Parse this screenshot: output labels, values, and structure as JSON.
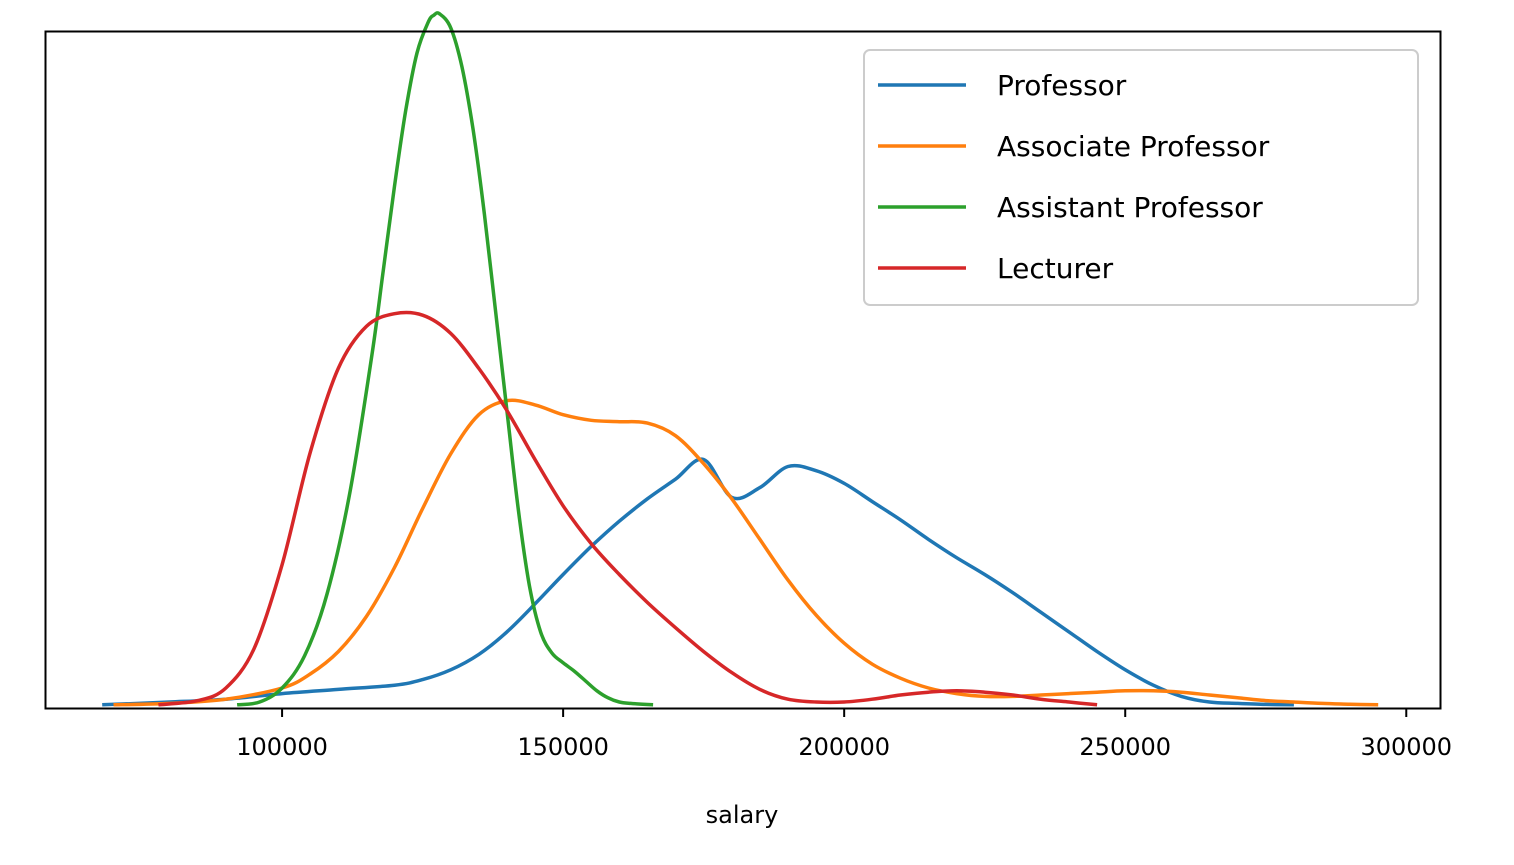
{
  "chart_data": {
    "type": "line",
    "title": "",
    "xlabel": "salary",
    "ylabel": "",
    "xlim": [
      58000,
      306000
    ],
    "ylim": [
      -2.26e-07,
      4.8e-05
    ],
    "xticks": [
      100000,
      150000,
      200000,
      250000,
      300000
    ],
    "xtick_labels": [
      "100000",
      "150000",
      "200000",
      "250000",
      "300000"
    ],
    "yticks_visible": false,
    "grid": false,
    "legend_position": "top-right",
    "series": [
      {
        "name": "Professor",
        "color": "#1f77b4",
        "x": [
          68000,
          80000,
          90000,
          100000,
          110000,
          120000,
          125000,
          130000,
          135000,
          140000,
          145000,
          150000,
          155000,
          160000,
          165000,
          170000,
          175000,
          180000,
          185000,
          190000,
          195000,
          200000,
          205000,
          210000,
          215000,
          220000,
          225000,
          230000,
          235000,
          240000,
          245000,
          250000,
          255000,
          260000,
          265000,
          270000,
          275000,
          280000
        ],
        "y": [
          0,
          2e-07,
          4e-07,
          8e-07,
          1.1e-06,
          1.4e-06,
          1.8e-06,
          2.5e-06,
          3.6e-06,
          5.2e-06,
          7.2e-06,
          9.3e-06,
          1.13e-05,
          1.31e-05,
          1.47e-05,
          1.61e-05,
          1.75e-05,
          1.48e-05,
          1.55e-05,
          1.7e-05,
          1.67e-05,
          1.58e-05,
          1.45e-05,
          1.32e-05,
          1.18e-05,
          1.05e-05,
          9.3e-06,
          8e-06,
          6.6e-06,
          5.2e-06,
          3.8e-06,
          2.5e-06,
          1.4e-06,
          6e-07,
          2e-07,
          1e-07,
          3e-08,
          0
        ]
      },
      {
        "name": "Associate Professor",
        "color": "#ff7f0e",
        "x": [
          70000,
          80000,
          90000,
          100000,
          105000,
          110000,
          115000,
          120000,
          125000,
          130000,
          135000,
          140000,
          145000,
          150000,
          155000,
          160000,
          165000,
          170000,
          175000,
          180000,
          185000,
          190000,
          195000,
          200000,
          205000,
          210000,
          215000,
          220000,
          225000,
          230000,
          235000,
          240000,
          245000,
          250000,
          255000,
          260000,
          265000,
          270000,
          275000,
          280000,
          285000,
          290000,
          295000
        ],
        "y": [
          0,
          1e-07,
          4e-07,
          1.2e-06,
          2.2e-06,
          3.8e-06,
          6.3e-06,
          9.8e-06,
          1.4e-05,
          1.79e-05,
          2.07e-05,
          2.17e-05,
          2.14e-05,
          2.07e-05,
          2.03e-05,
          2.02e-05,
          2.01e-05,
          1.92e-05,
          1.72e-05,
          1.47e-05,
          1.18e-05,
          8.9e-06,
          6.4e-06,
          4.4e-06,
          2.9e-06,
          1.9e-06,
          1.2e-06,
          8e-07,
          6e-07,
          6e-07,
          7e-07,
          8e-07,
          9e-07,
          1e-06,
          1e-06,
          9e-07,
          7e-07,
          5e-07,
          3e-07,
          2e-07,
          1e-07,
          4e-08,
          0
        ]
      },
      {
        "name": "Assistant Professor",
        "color": "#2ca02c",
        "x": [
          92000,
          96000,
          100000,
          104000,
          108000,
          112000,
          116000,
          118000,
          120000,
          122000,
          124000,
          126000,
          127000,
          128000,
          130000,
          132000,
          134000,
          136000,
          138000,
          140000,
          142000,
          144000,
          146000,
          148000,
          150000,
          152000,
          154000,
          156000,
          158000,
          160000,
          162000,
          166000
        ],
        "y": [
          0,
          2e-07,
          1.2e-06,
          3.5e-06,
          7.9e-06,
          1.5e-05,
          2.5e-05,
          3.1e-05,
          3.7e-05,
          4.24e-05,
          4.65e-05,
          4.87e-05,
          4.92e-05,
          4.93e-05,
          4.83e-05,
          4.55e-05,
          4.1e-05,
          3.5e-05,
          2.8e-05,
          2.1e-05,
          1.4e-05,
          8.5e-06,
          5.2e-06,
          3.7e-06,
          3e-06,
          2.4e-06,
          1.7e-06,
          1e-06,
          5e-07,
          2e-07,
          1e-07,
          0
        ]
      },
      {
        "name": "Lecturer",
        "color": "#d62728",
        "x": [
          78000,
          85000,
          90000,
          95000,
          100000,
          105000,
          110000,
          115000,
          120000,
          125000,
          130000,
          135000,
          140000,
          145000,
          150000,
          155000,
          160000,
          165000,
          170000,
          175000,
          180000,
          185000,
          190000,
          195000,
          200000,
          205000,
          210000,
          215000,
          220000,
          225000,
          230000,
          235000,
          240000,
          245000
        ],
        "y": [
          0,
          3e-07,
          1.2e-06,
          4e-06,
          1e-05,
          1.8e-05,
          2.4e-05,
          2.7e-05,
          2.79e-05,
          2.78e-05,
          2.65e-05,
          2.4e-05,
          2.1e-05,
          1.75e-05,
          1.42e-05,
          1.15e-05,
          9.3e-06,
          7.3e-06,
          5.5e-06,
          3.8e-06,
          2.3e-06,
          1.1e-06,
          4e-07,
          2e-07,
          2e-07,
          4e-07,
          7e-07,
          9e-07,
          1e-06,
          9e-07,
          7e-07,
          4e-07,
          2e-07,
          0
        ]
      }
    ]
  }
}
